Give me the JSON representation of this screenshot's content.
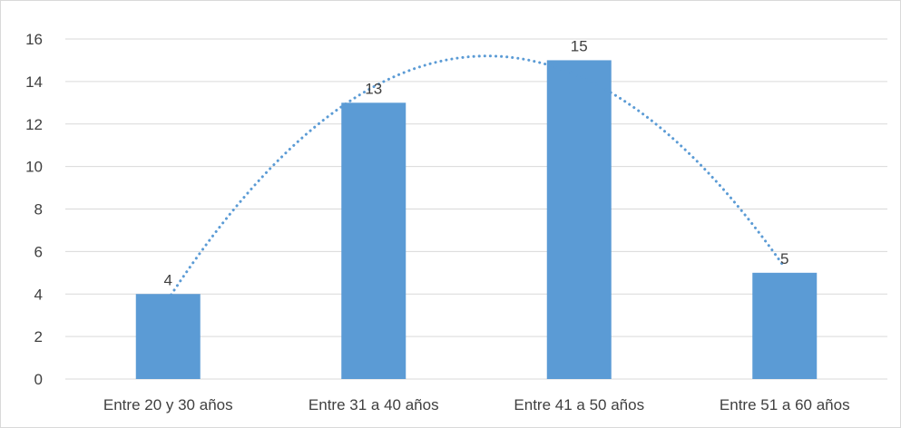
{
  "chart_data": {
    "type": "bar",
    "categories": [
      "Entre 20 y 30 años",
      "Entre 31 a 40 años",
      "Entre 41 a 50 años",
      "Entre 51 a 60 años"
    ],
    "values": [
      4,
      13,
      15,
      5
    ],
    "data_labels": [
      "4",
      "13",
      "15",
      "5"
    ],
    "y_ticks": [
      0,
      2,
      4,
      6,
      8,
      10,
      12,
      14,
      16
    ],
    "ylim": [
      0,
      16
    ],
    "grid": true,
    "legend": "none",
    "trendline": {
      "type": "polynomial",
      "order": 2,
      "style": "dotted",
      "color": "#5b9bd5"
    },
    "colors": {
      "bar": "#5b9bd5",
      "grid": "#d9d9d9",
      "text": "#404040"
    }
  }
}
